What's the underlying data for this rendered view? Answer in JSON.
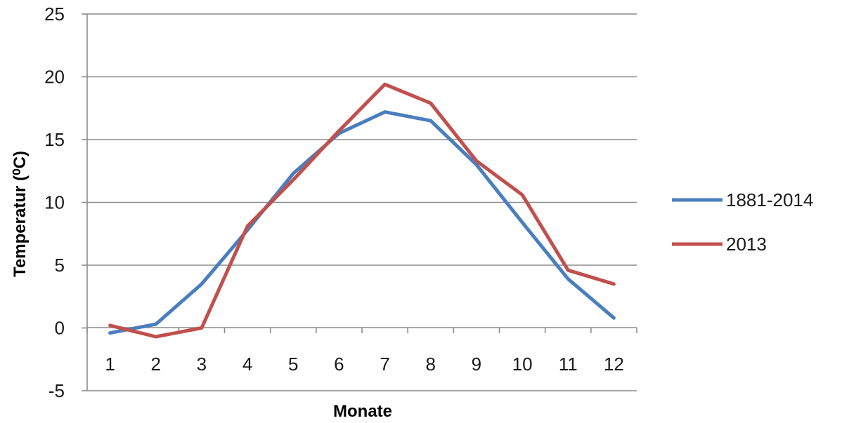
{
  "chart_data": {
    "type": "line",
    "title": "",
    "xlabel": "Monate",
    "ylabel": "Temperatur (⁰C)",
    "categories": [
      "1",
      "2",
      "3",
      "4",
      "5",
      "6",
      "7",
      "8",
      "9",
      "10",
      "11",
      "12"
    ],
    "ylim": [
      -5,
      25
    ],
    "yticks": [
      "-5",
      "0",
      "5",
      "10",
      "15",
      "20",
      "25"
    ],
    "grid": true,
    "legend_position": "right",
    "series": [
      {
        "name": "1881-2014",
        "color": "#4a7ebf",
        "values": [
          -0.4,
          0.3,
          3.5,
          7.8,
          12.3,
          15.5,
          17.2,
          16.5,
          13.0,
          8.4,
          3.9,
          0.8
        ]
      },
      {
        "name": "2013",
        "color": "#c0504d",
        "values": [
          0.2,
          -0.7,
          0.0,
          8.1,
          11.8,
          15.7,
          19.4,
          17.9,
          13.3,
          10.6,
          4.6,
          3.5
        ]
      }
    ]
  }
}
